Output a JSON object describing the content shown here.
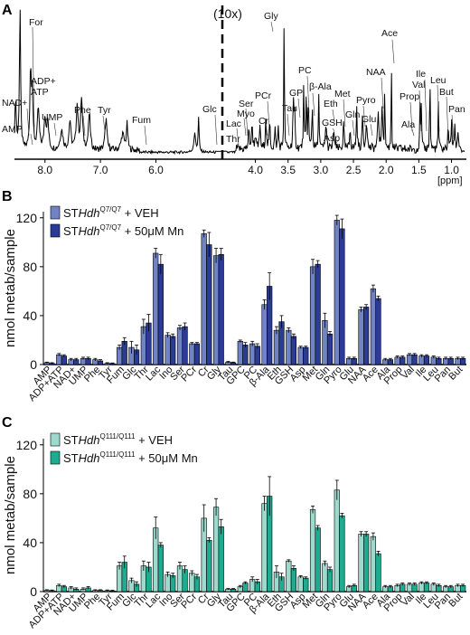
{
  "chart_data": [
    {
      "panel": "A",
      "type": "line",
      "xlabel": "[ppm]",
      "x_ticks": [
        "8.0",
        "7.0",
        "6.0",
        "4.0",
        "3.5",
        "3.0",
        "2.5",
        "2.0",
        "1.5",
        "1.0"
      ],
      "scale_note": "(10x)",
      "peak_labels": [
        "For",
        "ADP+\nATP",
        "NAD+",
        "AMP",
        "UMP",
        "Phe",
        "Tyr",
        "Fum",
        "Glc",
        "Gly",
        "PCr",
        "Ser",
        "Myo",
        "Lac",
        "Thr",
        "Cr",
        "Tau",
        "GP",
        "PC",
        "β-Ala",
        "Eth",
        "Met",
        "GSH",
        "Asp",
        "Gln",
        "Pyro",
        "Glu",
        "NAA",
        "Ace",
        "Prop",
        "Ala",
        "Ile",
        "Val",
        "Leu",
        "But",
        "Pan"
      ]
    },
    {
      "panel": "B",
      "type": "bar",
      "ylabel": "nmol metab/sample",
      "ylim": [
        0,
        125
      ],
      "yticks": [
        "0",
        "40",
        "80",
        "120"
      ],
      "categories": [
        "AMP",
        "ADP+ATP",
        "NAD+",
        "UMP",
        "Phe",
        "Tyr",
        "Fum",
        "Glc",
        "Thr",
        "Lac",
        "Ino",
        "Ser",
        "PCr",
        "Cr",
        "Gly",
        "Tau",
        "GPC",
        "PC",
        "β-Ala",
        "Eth",
        "GSH",
        "Asp",
        "Met",
        "Gln",
        "Pyro",
        "Glu",
        "NAA",
        "Ace",
        "Ala",
        "Prop",
        "Val",
        "Ile",
        "Leu",
        "Pan",
        "But"
      ],
      "series": [
        {
          "name_prefix": "STHdh",
          "name_sup": "Q7/Q7",
          "name_suffix": " + VEH",
          "color": "#7183c4",
          "values": [
            1.5,
            8,
            4,
            5,
            4,
            1,
            14,
            14,
            31,
            91,
            24,
            30,
            17,
            107,
            89,
            2,
            19,
            17,
            49,
            28,
            28,
            14,
            80,
            36,
            118,
            5,
            45,
            62,
            4,
            6,
            8,
            7,
            6,
            5,
            5
          ],
          "errors": [
            0.5,
            1,
            1,
            1,
            1,
            0.5,
            2,
            5,
            6,
            4,
            2,
            2,
            1,
            3,
            6,
            0.5,
            1,
            2,
            4,
            3,
            2,
            1,
            6,
            6,
            4,
            1,
            2,
            3,
            1,
            1,
            1,
            1,
            1,
            1,
            1
          ]
        },
        {
          "name_prefix": "STHdh",
          "name_sup": "Q7/Q7",
          "name_suffix": " + 50μM Mn",
          "color": "#2b3b96",
          "values": [
            1,
            7,
            4,
            5,
            3,
            0.8,
            19,
            12,
            34,
            82,
            23,
            31,
            17,
            98,
            90,
            1.5,
            16,
            15,
            64,
            35,
            23,
            14,
            82,
            25,
            111,
            5,
            47,
            54,
            4,
            6,
            8,
            7,
            5,
            5,
            5
          ],
          "errors": [
            0.5,
            1,
            1,
            1,
            1,
            0.5,
            3,
            4,
            7,
            8,
            2,
            3,
            1,
            10,
            5,
            0.5,
            2,
            2,
            11,
            5,
            2,
            1,
            3,
            2,
            8,
            1,
            2,
            2,
            1,
            1,
            1,
            1,
            1,
            1,
            1
          ]
        }
      ]
    },
    {
      "panel": "C",
      "type": "bar",
      "ylabel": "nmol metab/sample",
      "ylim": [
        0,
        125
      ],
      "yticks": [
        "0",
        "40",
        "80",
        "120"
      ],
      "categories": [
        "AMP",
        "ADP+ATP",
        "NAD+",
        "UMP",
        "Phe",
        "Tyr",
        "Fum",
        "Glc",
        "Thr",
        "Lac",
        "Ino",
        "Ser",
        "PCr",
        "Cr",
        "Gly",
        "Tau",
        "GPC",
        "PC",
        "β-Ala",
        "Eth",
        "GSH",
        "Asp",
        "Met",
        "Gln",
        "Pyro",
        "Glu",
        "NAA",
        "Ace",
        "Ala",
        "Prop",
        "Val",
        "Ile",
        "Leu",
        "Pan",
        "But"
      ],
      "series": [
        {
          "name_prefix": "STHdh",
          "name_sup": "Q111/Q111",
          "name_suffix": " + VEH",
          "color": "#9ed9cd",
          "values": [
            1,
            5,
            3,
            2,
            1,
            0.8,
            21,
            9,
            21,
            52,
            14,
            21,
            15,
            60,
            69,
            2,
            4,
            10,
            72,
            16,
            25,
            12,
            67,
            23,
            83,
            4,
            47,
            45,
            4,
            5,
            6,
            7,
            6,
            4,
            5
          ],
          "errors": [
            0.5,
            1,
            1,
            1,
            0.5,
            0.5,
            3,
            2,
            4,
            9,
            2,
            3,
            2,
            11,
            7,
            0.5,
            1,
            2,
            6,
            5,
            1,
            1,
            3,
            2,
            8,
            1,
            2,
            3,
            1,
            1,
            1,
            1,
            1,
            1,
            1
          ]
        },
        {
          "name_prefix": "STHdh",
          "name_sup": "Q111/Q111",
          "name_suffix": " + 50μM Mn",
          "color": "#1fab8f",
          "values": [
            0.8,
            4,
            2,
            3,
            1,
            0.6,
            24,
            6,
            20,
            38,
            13,
            18,
            12,
            42,
            53,
            2,
            7,
            8,
            78,
            12,
            19,
            11,
            52,
            18,
            62,
            5,
            47,
            31,
            4,
            6,
            6,
            7,
            5,
            4,
            5
          ],
          "errors": [
            0.5,
            1,
            1,
            1,
            0.5,
            0.5,
            5,
            2,
            4,
            2,
            2,
            3,
            2,
            2,
            6,
            0.5,
            1,
            2,
            16,
            3,
            2,
            1,
            2,
            2,
            2,
            1,
            2,
            2,
            1,
            1,
            1,
            1,
            1,
            1,
            1
          ]
        }
      ]
    }
  ],
  "panel_letters": [
    "A",
    "B",
    "C"
  ]
}
